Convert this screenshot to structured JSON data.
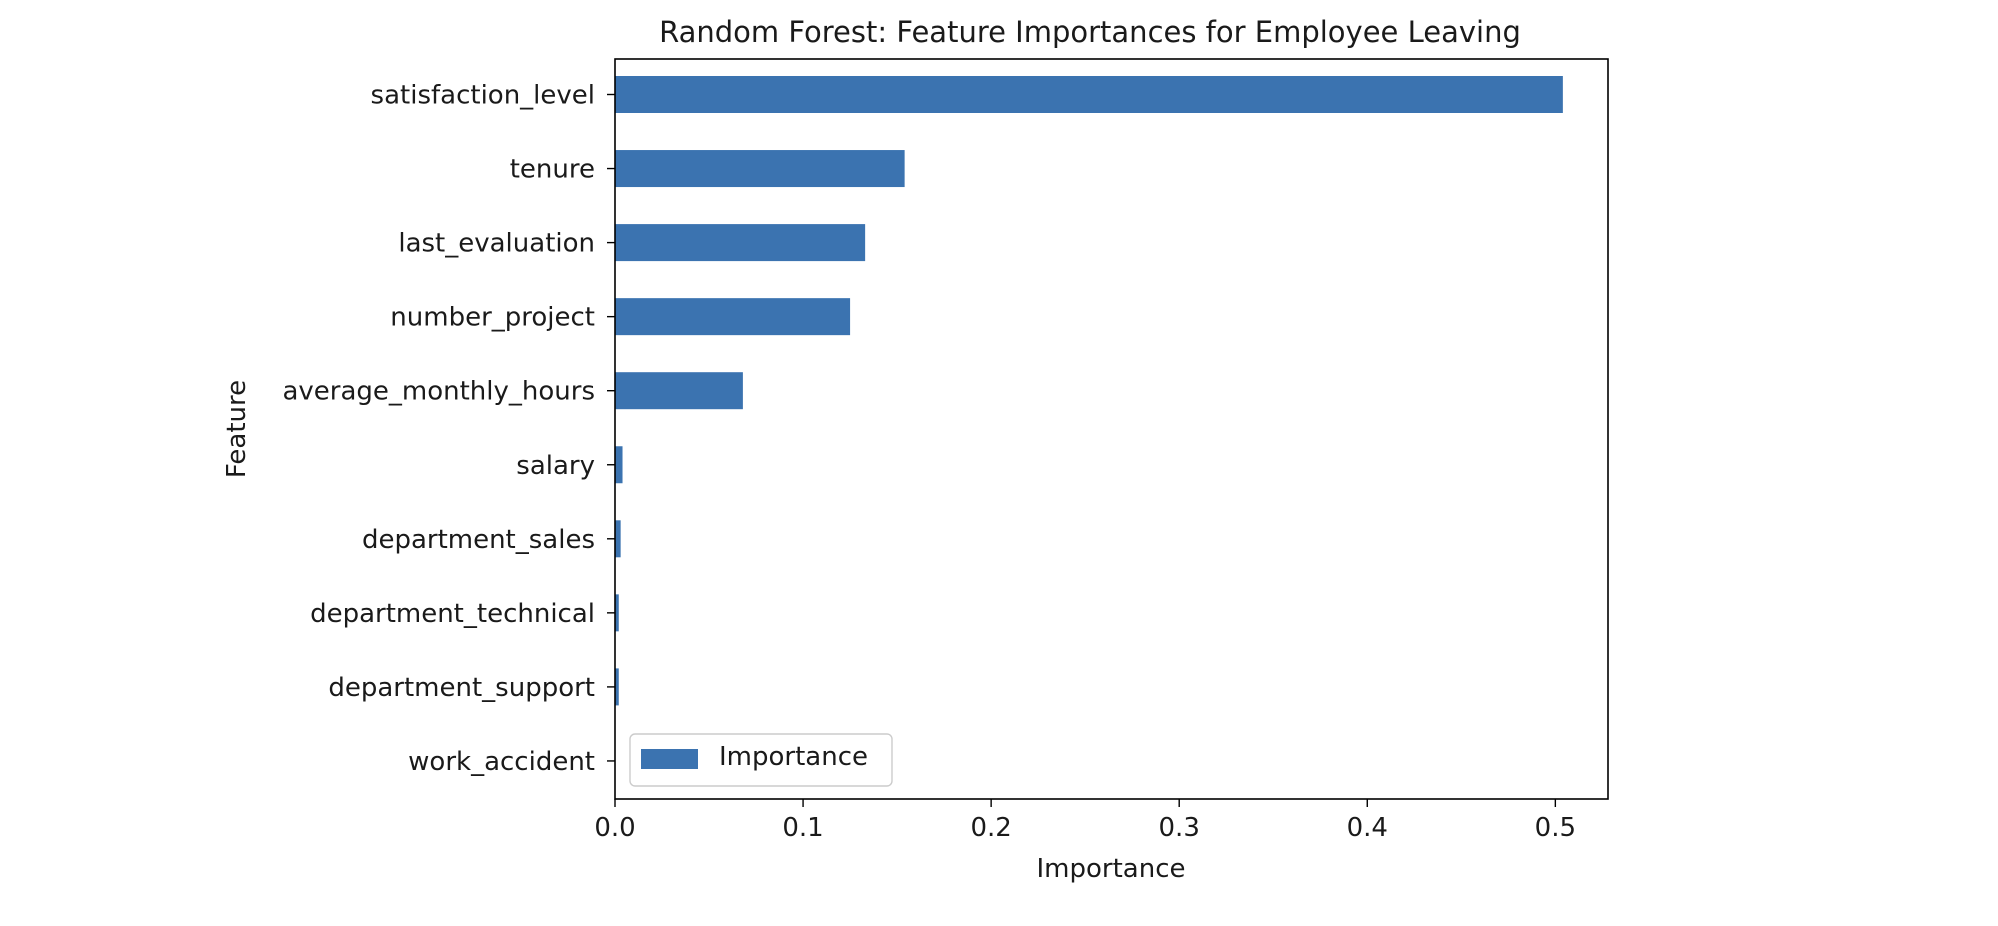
{
  "chart_data": {
    "type": "bar",
    "orientation": "horizontal",
    "title": "Random Forest: Feature Importances for Employee Leaving",
    "xlabel": "Importance",
    "ylabel": "Feature",
    "categories": [
      "satisfaction_level",
      "tenure",
      "last_evaluation",
      "number_project",
      "average_monthly_hours",
      "salary",
      "department_sales",
      "department_technical",
      "department_support",
      "work_accident"
    ],
    "series": [
      {
        "name": "Importance",
        "values": [
          0.504,
          0.154,
          0.133,
          0.125,
          0.068,
          0.004,
          0.003,
          0.002,
          0.002,
          0.0
        ],
        "color": "#3b73b0"
      }
    ],
    "xlim": [
      0,
      0.528
    ],
    "xticks": [
      0.0,
      0.1,
      0.2,
      0.3,
      0.4,
      0.5
    ],
    "xtick_labels": [
      "0.0",
      "0.1",
      "0.2",
      "0.3",
      "0.4",
      "0.5"
    ],
    "grid": false,
    "legend": "lower-left"
  }
}
